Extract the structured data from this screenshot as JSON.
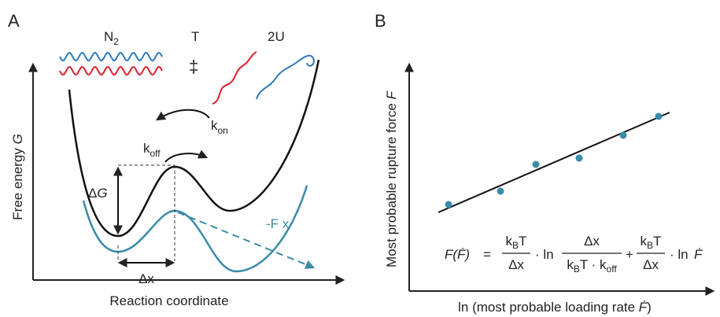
{
  "panel_a": {
    "label": "A",
    "states": {
      "native": {
        "text": "N",
        "sub": "2"
      },
      "transition": "T",
      "transition_symbol": "‡",
      "unfolded": "2U"
    },
    "k_on": {
      "text": "k",
      "sub": "on"
    },
    "k_off": {
      "text": "k",
      "sub": "off"
    },
    "delta_g": {
      "text": "Δ",
      "italic": "G"
    },
    "delta_x": "Δx",
    "force_term": "-F x",
    "y_axis": {
      "text": "Free energy ",
      "italic": "G"
    },
    "x_axis": "Reaction coordinate"
  },
  "panel_b": {
    "label": "B",
    "y_axis": {
      "text": "Most probable rupture force ",
      "italic": "F"
    },
    "x_axis": {
      "text": "ln (most probable loading rate ",
      "italic": "Ḟ",
      "close": ")"
    },
    "formula": {
      "lhs": "F(Ḟ)",
      "equals": "=",
      "term1": {
        "num": {
          "k": "k",
          "sub": "B",
          "t": "T"
        },
        "den": "Δx"
      },
      "op1": "· ln",
      "term2": {
        "num": "Δx",
        "den": {
          "k": "k",
          "sub": "B",
          "t": "T · k",
          "sub2": "off"
        }
      },
      "plus": "+",
      "term3": {
        "num": {
          "k": "k",
          "sub": "B",
          "t": "T"
        },
        "den": "Δx"
      },
      "op2": "· ln",
      "rhs": "Ḟ"
    }
  }
}
